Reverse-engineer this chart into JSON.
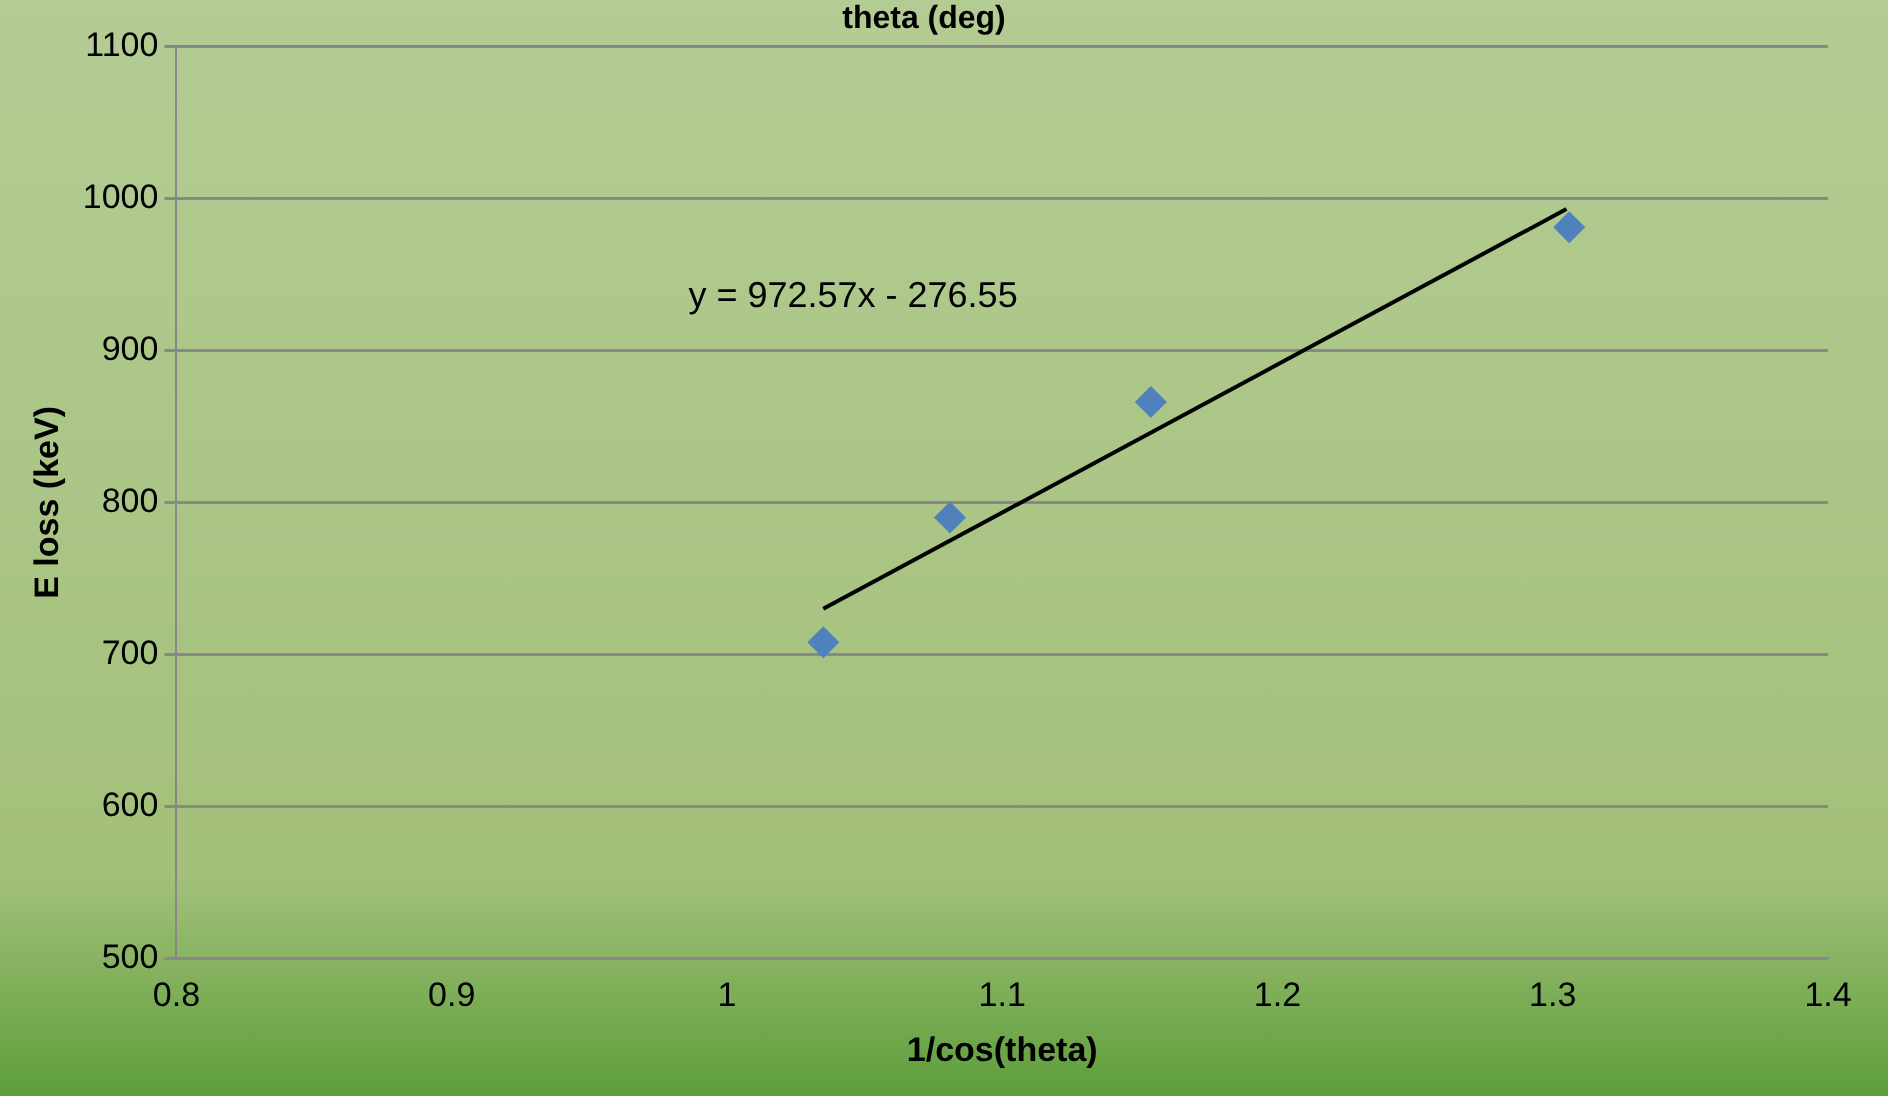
{
  "chart_data": {
    "type": "scatter",
    "title": "theta (deg)",
    "xlabel": "1/cos(theta)",
    "ylabel": "E loss (keV)",
    "xlim": [
      0.8,
      1.4
    ],
    "xticks": [
      0.8,
      0.9,
      1,
      1.1,
      1.2,
      1.3,
      1.4
    ],
    "ylim": [
      500,
      1100
    ],
    "yticks": [
      500,
      600,
      700,
      800,
      900,
      1000,
      1100
    ],
    "grid": "y",
    "legend": false,
    "marker": "diamond",
    "series": [
      {
        "color": "#4f81bd",
        "x": [
          1.035,
          1.081,
          1.154,
          1.306
        ],
        "values": [
          708,
          790,
          866,
          981
        ]
      },
      {
        "type": "line",
        "color": "#000000",
        "marker": "none",
        "x": [
          1.035,
          1.305
        ],
        "values": [
          730,
          993
        ]
      }
    ],
    "annotations": [
      "y = 972.57x - 276.55"
    ]
  }
}
